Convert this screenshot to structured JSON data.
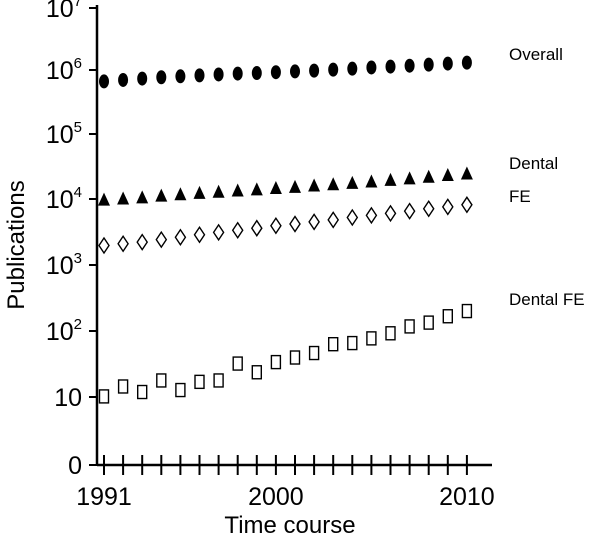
{
  "chart_data": {
    "type": "scatter",
    "title": "",
    "xlabel": "Time course",
    "ylabel": "Publications",
    "xlim": [
      1991,
      2010
    ],
    "x_tick_labels": [
      "1991",
      "2000",
      "2010"
    ],
    "y_scale": "log",
    "ylim": [
      1,
      10000000
    ],
    "y_ticks": [
      {
        "base": "0",
        "exp": ""
      },
      {
        "base": "10",
        "exp": ""
      },
      {
        "base": "10",
        "exp": "2"
      },
      {
        "base": "10",
        "exp": "3"
      },
      {
        "base": "10",
        "exp": "4"
      },
      {
        "base": "10",
        "exp": "5"
      },
      {
        "base": "10",
        "exp": "6"
      },
      {
        "base": "10",
        "exp": "7"
      }
    ],
    "grid": false,
    "legend": "series labels placed right of last point",
    "x": [
      1991,
      1992,
      1993,
      1994,
      1995,
      1996,
      1997,
      1998,
      1999,
      2000,
      2001,
      2002,
      2003,
      2004,
      2005,
      2006,
      2007,
      2008,
      2009,
      2010
    ],
    "series": [
      {
        "name": "Overall",
        "marker": "filled-circle",
        "values": [
          760000,
          800000,
          840000,
          880000,
          910000,
          940000,
          970000,
          1000000,
          1020000,
          1050000,
          1080000,
          1110000,
          1150000,
          1190000,
          1240000,
          1280000,
          1320000,
          1370000,
          1420000,
          1470000
        ]
      },
      {
        "name": "Dental",
        "marker": "filled-triangle",
        "values": [
          12000,
          12500,
          13000,
          13800,
          14500,
          15200,
          15800,
          16500,
          17200,
          18000,
          18800,
          19700,
          20600,
          21600,
          22700,
          24000,
          25300,
          26800,
          28400,
          30000
        ]
      },
      {
        "name": "FE",
        "marker": "open-diamond",
        "values": [
          2400,
          2550,
          2700,
          2950,
          3200,
          3500,
          3800,
          4100,
          4400,
          4800,
          5100,
          5500,
          5900,
          6400,
          6900,
          7400,
          8000,
          8700,
          9300,
          10000
        ]
      },
      {
        "name": "Dental FE",
        "marker": "open-square",
        "values": [
          12,
          17,
          14,
          21,
          15,
          20,
          21,
          38,
          28,
          40,
          47,
          55,
          75,
          78,
          92,
          110,
          140,
          160,
          200,
          240
        ]
      }
    ]
  }
}
